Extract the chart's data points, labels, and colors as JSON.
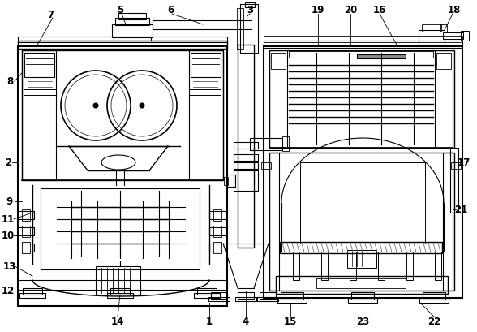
{
  "bg_color": "#ffffff",
  "line_color": "#000000",
  "lw": 0.8
}
